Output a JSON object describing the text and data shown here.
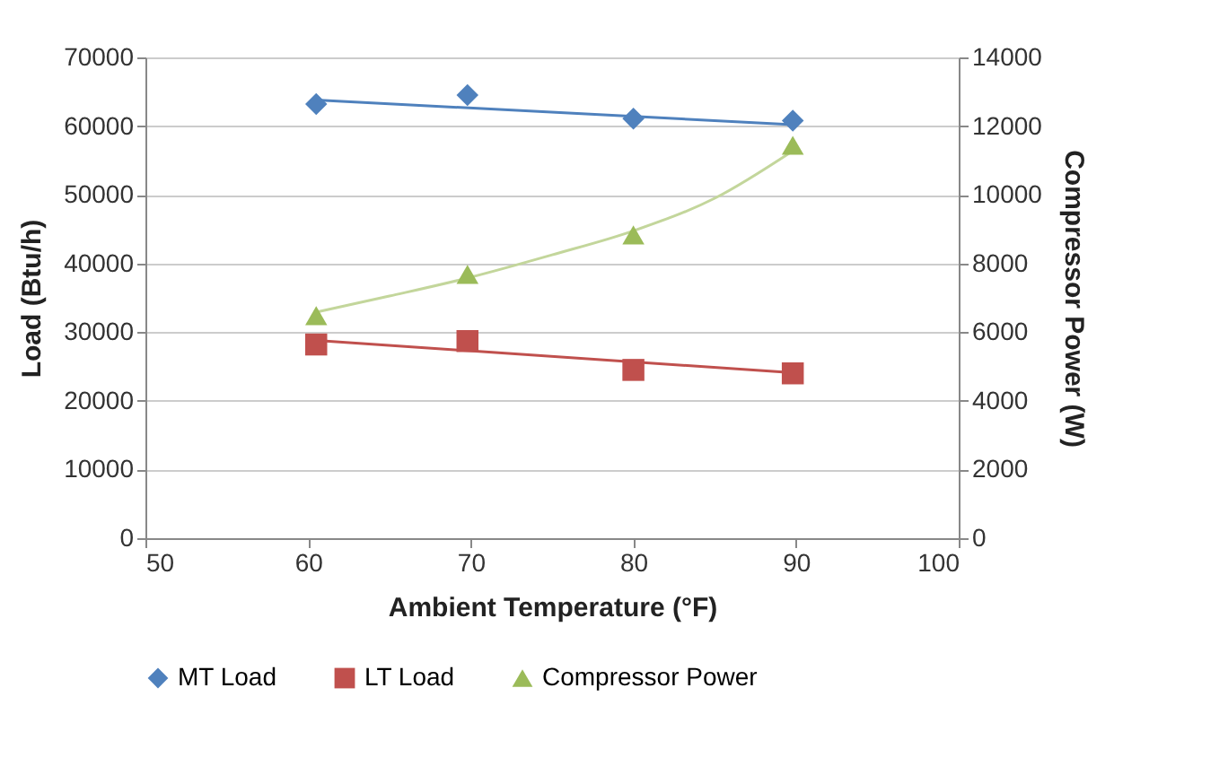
{
  "chart_data": {
    "type": "scatter",
    "xlabel": "Ambient Temperature (°F)",
    "ylabel": "Load (Btu/h)",
    "y2label": "Compressor Power (W)",
    "xlim": [
      50,
      100
    ],
    "xticks": [
      50,
      60,
      70,
      80,
      90,
      100
    ],
    "ylim": [
      0,
      70000
    ],
    "yticks": [
      0,
      10000,
      20000,
      30000,
      40000,
      50000,
      60000,
      70000
    ],
    "y2lim": [
      0,
      14000
    ],
    "y2ticks": [
      0,
      2000,
      4000,
      6000,
      8000,
      10000,
      12000,
      14000
    ],
    "grid": "y",
    "legend": "bottom",
    "series": [
      {
        "type": "line",
        "color": "#4f81bd",
        "x": [
          60.5,
          89.8
        ],
        "values": [
          63800,
          60200
        ]
      },
      {
        "type": "line",
        "color": "#c0504d",
        "x": [
          60.5,
          89.8
        ],
        "values": [
          28800,
          24100
        ]
      },
      {
        "type": "line",
        "color": "#c3d69b",
        "axis": "y2",
        "x": [
          60.5,
          65,
          70,
          75,
          80,
          85,
          89.8
        ],
        "values": [
          6580,
          7050,
          7600,
          8250,
          8950,
          9900,
          11280
        ]
      },
      {
        "name": "MT Load",
        "color": "#4f81bd",
        "marker": "diamond",
        "x": [
          60.5,
          69.8,
          80,
          89.8
        ],
        "values": [
          63200,
          64500,
          61100,
          60800
        ]
      },
      {
        "name": "LT Load",
        "color": "#c0504d",
        "marker": "square",
        "x": [
          60.5,
          69.8,
          80,
          89.8
        ],
        "values": [
          28200,
          28700,
          24500,
          24000
        ]
      },
      {
        "name": "Compressor Power",
        "color": "#9bbb59",
        "marker": "triangle",
        "axis": "y2",
        "x": [
          60.5,
          69.8,
          80,
          89.8
        ],
        "values": [
          6480,
          7680,
          8830,
          11440
        ]
      }
    ]
  }
}
